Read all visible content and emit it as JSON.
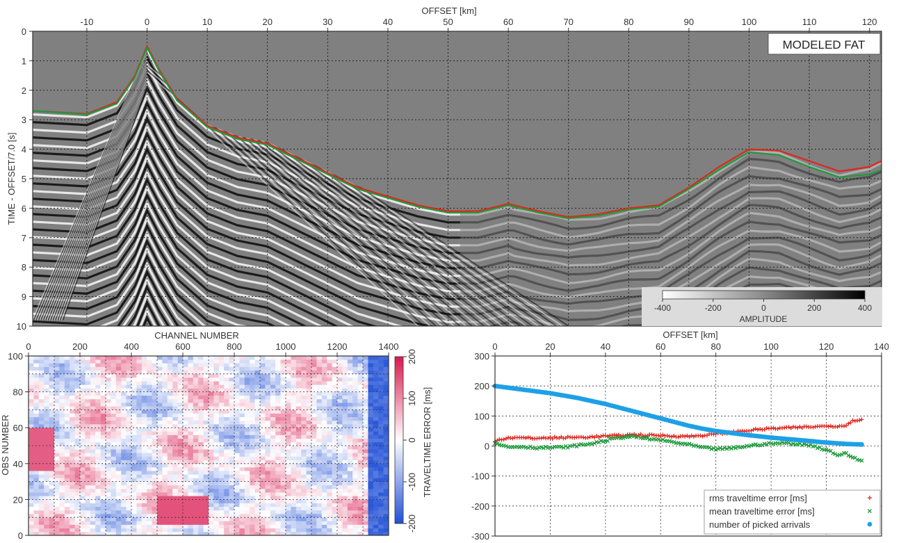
{
  "chart_data": [
    {
      "type": "heatmap",
      "panel": "seismic-section",
      "badge": "MODELED FAT",
      "xlabel": "OFFSET [km]",
      "ylabel": "TIME - OFFSET/7.0  [s]",
      "xlim": [
        -19,
        122
      ],
      "ylim": [
        10,
        0
      ],
      "xticks": [
        -10,
        0,
        10,
        20,
        30,
        40,
        50,
        60,
        70,
        80,
        90,
        100,
        110,
        120
      ],
      "yticks": [
        0,
        1,
        2,
        3,
        4,
        5,
        6,
        7,
        8,
        9,
        10
      ],
      "grid": true,
      "first_arrival_picks": {
        "x": [
          -19,
          -10,
          -5,
          -2,
          0,
          2,
          5,
          10,
          15,
          20,
          25,
          30,
          35,
          40,
          45,
          50,
          55,
          60,
          65,
          70,
          75,
          80,
          85,
          90,
          95,
          100,
          105,
          110,
          115,
          120,
          122
        ],
        "t_observed": [
          2.7,
          2.8,
          2.4,
          1.5,
          0.5,
          1.3,
          2.3,
          3.2,
          3.6,
          3.8,
          4.3,
          4.8,
          5.3,
          5.6,
          5.9,
          6.1,
          6.1,
          5.85,
          6.1,
          6.3,
          6.2,
          6.0,
          5.9,
          5.3,
          4.6,
          4.0,
          4.05,
          4.4,
          4.75,
          4.6,
          4.4
        ],
        "t_modeled": [
          2.7,
          2.82,
          2.45,
          1.55,
          0.55,
          1.35,
          2.35,
          3.25,
          3.65,
          3.85,
          4.35,
          4.85,
          5.35,
          5.65,
          5.95,
          6.15,
          6.15,
          5.9,
          6.15,
          6.35,
          6.25,
          6.05,
          5.95,
          5.35,
          4.7,
          4.1,
          4.2,
          4.6,
          4.95,
          4.85,
          4.7
        ]
      },
      "colorbar": {
        "label": "AMPLITUDE",
        "ticks": [
          -400,
          -200,
          0,
          200,
          400
        ],
        "range": [
          -400,
          400
        ],
        "colors": [
          "#ffffff",
          "#000000"
        ]
      }
    },
    {
      "type": "heatmap",
      "panel": "traveltime-error-matrix",
      "xlabel": "CHANNEL NUMBER",
      "ylabel": "OBS NUMBER",
      "xlim": [
        0,
        1400
      ],
      "ylim": [
        0,
        100
      ],
      "xticks": [
        0,
        200,
        400,
        600,
        800,
        1000,
        1200,
        1400
      ],
      "yticks": [
        0,
        20,
        40,
        60,
        80,
        100
      ],
      "grid": true,
      "colorbar": {
        "label": "TRAVELTIME ERROR [ms]",
        "ticks": [
          -200,
          -100,
          0,
          100,
          200
        ],
        "range": [
          -200,
          200
        ],
        "colors": [
          "#1f4fd6",
          "#ffffff",
          "#d9184f"
        ]
      }
    },
    {
      "type": "scatter",
      "panel": "error-statistics",
      "xlabel": "OFFSET [km]",
      "xlim": [
        0,
        140
      ],
      "ylim": [
        -300,
        300
      ],
      "xticks": [
        0,
        20,
        40,
        60,
        80,
        100,
        120,
        140
      ],
      "yticks": [
        300,
        200,
        100,
        0,
        -100,
        -200,
        -300
      ],
      "grid": true,
      "legend_position": "bottom-right",
      "x": [
        0,
        5,
        10,
        15,
        20,
        25,
        30,
        35,
        40,
        45,
        50,
        55,
        60,
        65,
        70,
        75,
        80,
        85,
        90,
        95,
        100,
        105,
        110,
        115,
        118,
        121,
        124,
        127,
        130,
        133
      ],
      "series": [
        {
          "name": "rms traveltime error [ms]",
          "color": "#e0261c",
          "marker": "+",
          "values": [
            18,
            28,
            27,
            26,
            27,
            28,
            29,
            30,
            33,
            35,
            38,
            36,
            35,
            33,
            32,
            35,
            40,
            45,
            50,
            55,
            58,
            60,
            62,
            64,
            65,
            68,
            65,
            70,
            85,
            90
          ]
        },
        {
          "name": "mean traveltime error [ms]",
          "color": "#1e9a3c",
          "marker": "x",
          "values": [
            8,
            -3,
            -2,
            -6,
            -5,
            -4,
            2,
            8,
            18,
            28,
            32,
            24,
            20,
            12,
            5,
            -5,
            -10,
            -8,
            -2,
            4,
            8,
            10,
            6,
            2,
            -8,
            -15,
            -30,
            -25,
            -40,
            -50
          ]
        },
        {
          "name": "number of picked arrivals",
          "color": "#1ea0e6",
          "marker": "*",
          "values": [
            200,
            194,
            188,
            182,
            176,
            168,
            160,
            150,
            140,
            128,
            116,
            104,
            92,
            80,
            68,
            58,
            50,
            44,
            38,
            33,
            28,
            24,
            20,
            16,
            13,
            11,
            9,
            7,
            6,
            5
          ]
        }
      ]
    }
  ]
}
